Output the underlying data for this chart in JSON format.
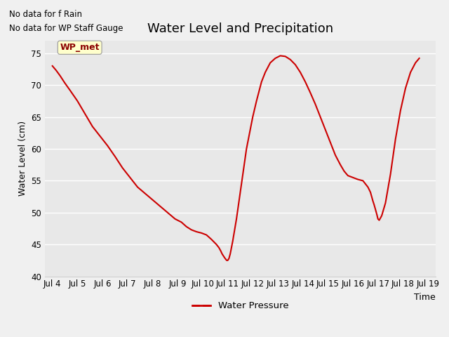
{
  "title": "Water Level and Precipitation",
  "xlabel": "Time",
  "ylabel": "Water Level (cm)",
  "ylim": [
    40,
    77
  ],
  "yticks": [
    40,
    45,
    50,
    55,
    60,
    65,
    70,
    75
  ],
  "x_labels": [
    "Jul 4",
    "Jul 5",
    "Jul 6",
    "Jul 7",
    "Jul 8",
    "Jul 9",
    "Jul 10",
    "Jul 11",
    "Jul 12",
    "Jul 13",
    "Jul 14",
    "Jul 15",
    "Jul 16",
    "Jul 17",
    "Jul 18",
    "Jul 19"
  ],
  "x_values": [
    4,
    5,
    6,
    7,
    8,
    9,
    10,
    11,
    12,
    13,
    14,
    15,
    16,
    17,
    18,
    19
  ],
  "xlim": [
    3.7,
    19.3
  ],
  "line_x": [
    4.0,
    4.15,
    4.3,
    4.5,
    4.7,
    5.0,
    5.3,
    5.6,
    5.9,
    6.2,
    6.5,
    6.8,
    7.1,
    7.4,
    7.7,
    8.0,
    8.3,
    8.6,
    8.9,
    9.15,
    9.35,
    9.55,
    9.75,
    9.95,
    10.15,
    10.35,
    10.55,
    10.65,
    10.72,
    10.78,
    10.83,
    10.88,
    10.92,
    10.96,
    11.0,
    11.05,
    11.1,
    11.2,
    11.35,
    11.55,
    11.75,
    12.0,
    12.15,
    12.25,
    12.35,
    12.5,
    12.7,
    12.9,
    13.1,
    13.3,
    13.5,
    13.7,
    13.9,
    14.1,
    14.3,
    14.5,
    14.7,
    14.9,
    15.1,
    15.3,
    15.5,
    15.65,
    15.8,
    16.0,
    16.2,
    16.4,
    16.6,
    16.7,
    16.75,
    16.8,
    16.85,
    16.9,
    16.95,
    17.0,
    17.05,
    17.15,
    17.3,
    17.5,
    17.7,
    17.9,
    18.1,
    18.3,
    18.5,
    18.65
  ],
  "line_y": [
    73.0,
    72.3,
    71.5,
    70.3,
    69.2,
    67.5,
    65.5,
    63.5,
    62.0,
    60.5,
    58.8,
    57.0,
    55.5,
    54.0,
    53.0,
    52.0,
    51.0,
    50.0,
    49.0,
    48.5,
    47.8,
    47.3,
    47.0,
    46.8,
    46.5,
    45.8,
    45.0,
    44.5,
    44.0,
    43.5,
    43.2,
    42.9,
    42.7,
    42.5,
    42.5,
    42.8,
    43.5,
    45.5,
    49.0,
    54.5,
    60.0,
    65.0,
    67.5,
    69.0,
    70.5,
    72.0,
    73.5,
    74.2,
    74.6,
    74.5,
    74.0,
    73.2,
    72.0,
    70.5,
    68.8,
    67.0,
    65.0,
    63.0,
    61.0,
    59.0,
    57.5,
    56.5,
    55.8,
    55.5,
    55.2,
    55.0,
    54.0,
    53.2,
    52.5,
    51.8,
    51.2,
    50.5,
    49.8,
    49.0,
    48.8,
    49.5,
    51.5,
    56.0,
    61.5,
    66.0,
    69.5,
    72.0,
    73.5,
    74.2
  ],
  "line_color": "#cc0000",
  "line_width": 1.5,
  "legend_label": "Water Pressure",
  "legend_line_color": "#cc0000",
  "annotation1": "No data for f Rain",
  "annotation2": "No data for WP Staff Gauge",
  "wp_met_label": "WP_met",
  "bg_color": "#f0f0f0",
  "plot_bg_color": "#e8e8e8",
  "title_fontsize": 13,
  "axis_fontsize": 9,
  "tick_fontsize": 8.5
}
